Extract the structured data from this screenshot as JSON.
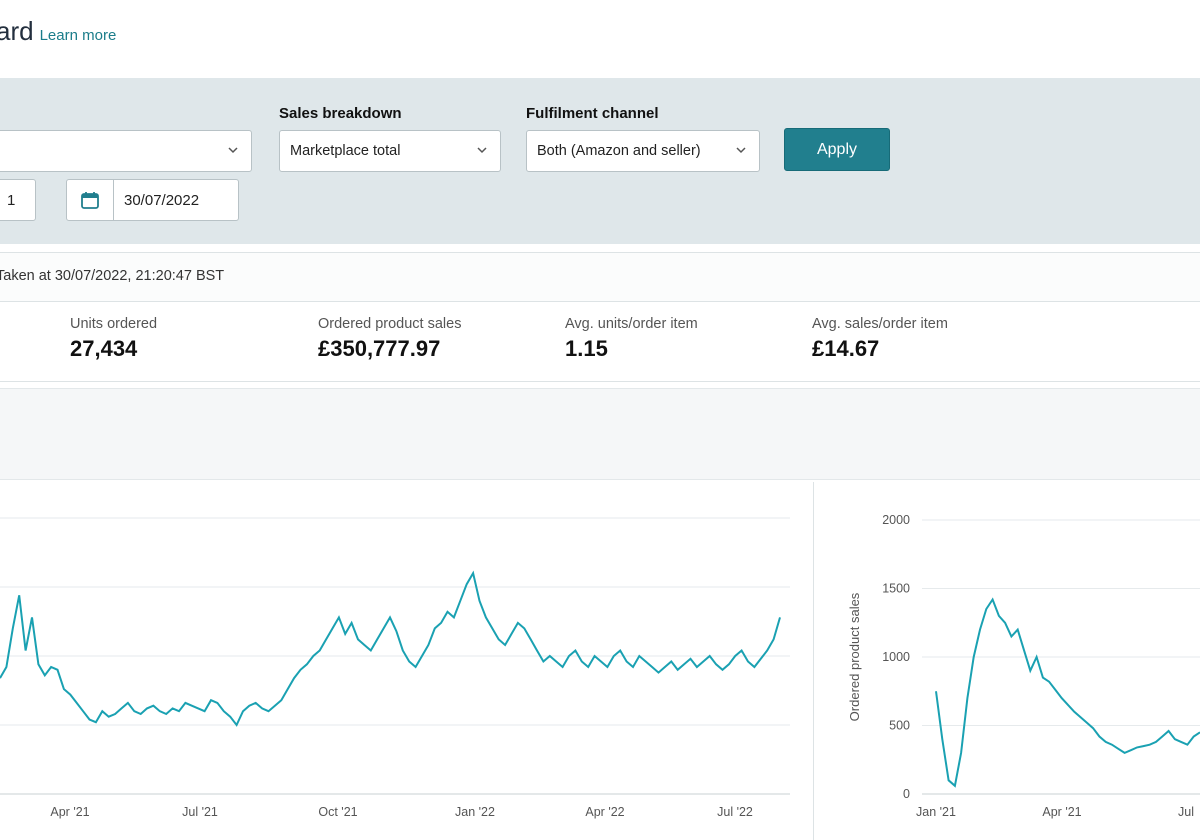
{
  "header": {
    "title_fragment": "ard",
    "learn_more": "Learn more"
  },
  "filters": {
    "sales_breakdown_label": "Sales breakdown",
    "sales_breakdown_value": "Marketplace total",
    "fulfilment_label": "Fulfilment channel",
    "fulfilment_value": "Both (Amazon and seller)",
    "apply_label": "Apply",
    "start_date_fragment": "1",
    "end_date": "30/07/2022"
  },
  "snapshot": {
    "text": "Taken at 30/07/2022, 21:20:47 BST"
  },
  "metrics": [
    {
      "label": "Units ordered",
      "value": "27,434"
    },
    {
      "label": "Ordered product sales",
      "value": "£350,777.97"
    },
    {
      "label": "Avg. units/order item",
      "value": "1.15"
    },
    {
      "label": "Avg. sales/order item",
      "value": "£14.67"
    }
  ],
  "colors": {
    "accent": "#217f8e",
    "line": "#1aa1b2",
    "filter_bg": "#dfe7ea"
  },
  "chart_data": [
    {
      "type": "line",
      "x_ticks": [
        "Apr '21",
        "Jul '21",
        "Oct '21",
        "Jan '22",
        "Apr '22",
        "Jul '22"
      ],
      "series": [
        {
          "values": [
            420,
            460,
            600,
            720,
            520,
            640,
            470,
            430,
            460,
            450,
            380,
            360,
            330,
            300,
            270,
            260,
            300,
            280,
            290,
            310,
            330,
            300,
            290,
            310,
            320,
            300,
            290,
            310,
            300,
            330,
            320,
            310,
            300,
            340,
            330,
            300,
            280,
            250,
            300,
            320,
            330,
            310,
            300,
            320,
            340,
            380,
            420,
            450,
            470,
            500,
            520,
            560,
            600,
            640,
            580,
            620,
            560,
            540,
            520,
            560,
            600,
            640,
            590,
            520,
            480,
            460,
            500,
            540,
            600,
            620,
            660,
            640,
            700,
            760,
            800,
            700,
            640,
            600,
            560,
            540,
            580,
            620,
            600,
            560,
            520,
            480,
            500,
            480,
            460,
            500,
            520,
            480,
            460,
            500,
            480,
            460,
            500,
            520,
            480,
            460,
            500,
            480,
            460,
            440,
            460,
            480,
            450,
            470,
            490,
            460,
            480,
            500,
            470,
            450,
            470,
            500,
            520,
            480,
            460,
            490,
            520,
            560,
            640
          ]
        }
      ]
    },
    {
      "type": "line",
      "ylabel": "Ordered product sales",
      "y_ticks": [
        "0",
        "500",
        "1000",
        "1500",
        "2000"
      ],
      "ylim": [
        0,
        2000
      ],
      "x_ticks": [
        "Jan '21",
        "Apr '21",
        "Jul"
      ],
      "series": [
        {
          "values": [
            750,
            400,
            100,
            60,
            300,
            700,
            1000,
            1200,
            1350,
            1420,
            1300,
            1250,
            1150,
            1200,
            1050,
            900,
            1000,
            850,
            820,
            760,
            700,
            650,
            600,
            560,
            520,
            480,
            420,
            380,
            360,
            330,
            300,
            320,
            340,
            350,
            360,
            380,
            420,
            460,
            400,
            380,
            360,
            420,
            450
          ]
        }
      ]
    }
  ]
}
